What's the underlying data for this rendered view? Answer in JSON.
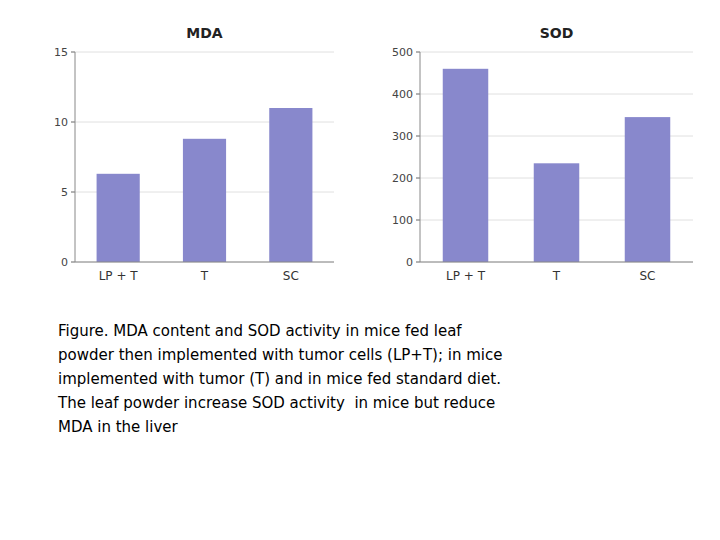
{
  "chart_data": [
    {
      "type": "bar",
      "title": "MDA",
      "categories": [
        "LP + T",
        "T",
        "SC"
      ],
      "values": [
        6.3,
        8.8,
        11.0
      ],
      "color": "#8888cc",
      "ylim": [
        0,
        15
      ],
      "yticks": [
        0,
        5,
        10,
        15
      ],
      "grid": true
    },
    {
      "type": "bar",
      "title": "SOD",
      "categories": [
        "LP + T",
        "T",
        "SC"
      ],
      "values": [
        460,
        235,
        345
      ],
      "color": "#8888cc",
      "ylim": [
        0,
        500
      ],
      "yticks": [
        0,
        100,
        200,
        300,
        400,
        500
      ],
      "grid": true
    }
  ],
  "caption": [
    "Figure. MDA content and SOD activity in mice fed leaf",
    "powder then implemented with tumor cells (LP+T); in mice",
    "implemented with tumor (T) and in mice fed standard diet.",
    "The leaf powder increase SOD activity  in mice but reduce",
    "MDA in the liver"
  ]
}
